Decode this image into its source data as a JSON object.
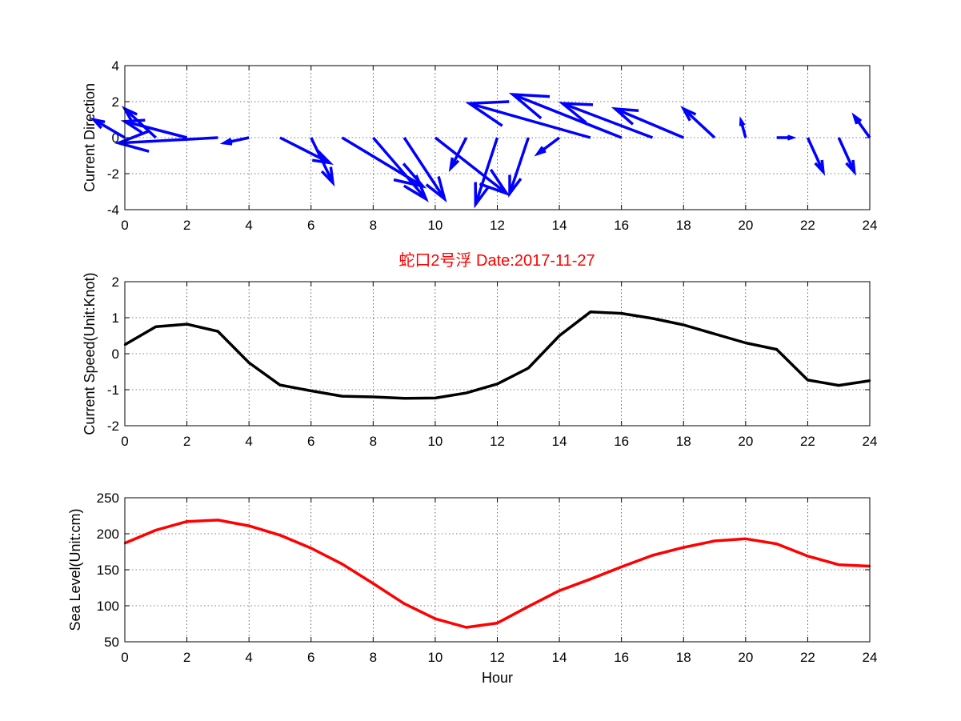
{
  "title": "蛇口2号浮   Date:2017-11-27",
  "colors": {
    "quiver": "#0000ff",
    "speed": "#000000",
    "sea_level": "#ff0000",
    "title": "#ff0000"
  },
  "chart_data": [
    {
      "type": "quiver",
      "ylabel": "Current Direction",
      "xlabel": "",
      "xlim": [
        0,
        24
      ],
      "ylim": [
        -4,
        4
      ],
      "xticks": [
        0,
        2,
        4,
        6,
        8,
        10,
        12,
        14,
        16,
        18,
        20,
        22,
        24
      ],
      "yticks": [
        -4,
        -2,
        0,
        2,
        4
      ],
      "grid": true,
      "series": [
        {
          "x": [
            0,
            1,
            2,
            3,
            4,
            5,
            6,
            7,
            8,
            9,
            10,
            11,
            12,
            13,
            14,
            15,
            16,
            17,
            18,
            19,
            20,
            21,
            22,
            23,
            24
          ],
          "y": [
            0,
            0,
            0,
            0,
            0,
            0,
            0,
            0,
            0,
            0,
            0,
            0,
            0,
            0,
            0,
            0,
            0,
            0,
            0,
            0,
            0,
            0,
            0,
            0,
            0
          ],
          "u": [
            -1.0,
            -1.0,
            -2.0,
            -3.2,
            -0.8,
            1.6,
            0.7,
            2.6,
            1.7,
            1.3,
            2.3,
            -0.5,
            -0.7,
            -0.6,
            -0.7,
            -3.9,
            -3.5,
            -2.9,
            -2.2,
            -1.0,
            -0.15,
            0.5,
            0.5,
            0.5,
            -0.5
          ],
          "v": [
            1.0,
            1.6,
            0.9,
            -0.3,
            -0.3,
            -1.4,
            -2.5,
            -2.7,
            -3.4,
            -3.4,
            -3.1,
            -1.7,
            -3.7,
            -3.1,
            -0.9,
            1.9,
            2.4,
            1.9,
            1.6,
            1.6,
            0.95,
            0.0,
            -1.9,
            -1.9,
            1.2
          ]
        }
      ]
    },
    {
      "type": "line",
      "ylabel": "Current Speed(Unit:Knot)",
      "xlabel": "",
      "xlim": [
        0,
        24
      ],
      "ylim": [
        -2,
        2
      ],
      "xticks": [
        0,
        2,
        4,
        6,
        8,
        10,
        12,
        14,
        16,
        18,
        20,
        22,
        24
      ],
      "yticks": [
        -2,
        -1,
        0,
        1,
        2
      ],
      "grid": true,
      "series": [
        {
          "x": [
            0,
            1,
            2,
            3,
            4,
            5,
            6,
            7,
            8,
            9,
            10,
            11,
            12,
            13,
            14,
            15,
            16,
            17,
            18,
            19,
            20,
            21,
            22,
            23,
            24
          ],
          "values": [
            0.25,
            0.75,
            0.82,
            0.62,
            -0.25,
            -0.87,
            -1.03,
            -1.18,
            -1.2,
            -1.24,
            -1.23,
            -1.09,
            -0.84,
            -0.4,
            0.5,
            1.16,
            1.12,
            0.98,
            0.8,
            0.55,
            0.3,
            0.12,
            -0.73,
            -0.88,
            -0.75
          ]
        }
      ]
    },
    {
      "type": "line",
      "ylabel": "Sea Level(Unit:cm)",
      "xlabel": "Hour",
      "xlim": [
        0,
        24
      ],
      "ylim": [
        50,
        250
      ],
      "xticks": [
        0,
        2,
        4,
        6,
        8,
        10,
        12,
        14,
        16,
        18,
        20,
        22,
        24
      ],
      "yticks": [
        50,
        100,
        150,
        200,
        250
      ],
      "grid": true,
      "series": [
        {
          "x": [
            0,
            1,
            2,
            3,
            4,
            5,
            6,
            7,
            8,
            9,
            10,
            11,
            12,
            13,
            14,
            15,
            16,
            17,
            18,
            19,
            20,
            21,
            22,
            23,
            24
          ],
          "values": [
            187,
            205,
            217,
            219,
            211,
            198,
            180,
            158,
            131,
            103,
            82,
            70,
            76,
            99,
            121,
            137,
            154,
            170,
            181,
            190,
            193,
            186,
            169,
            157,
            155
          ]
        }
      ]
    }
  ]
}
